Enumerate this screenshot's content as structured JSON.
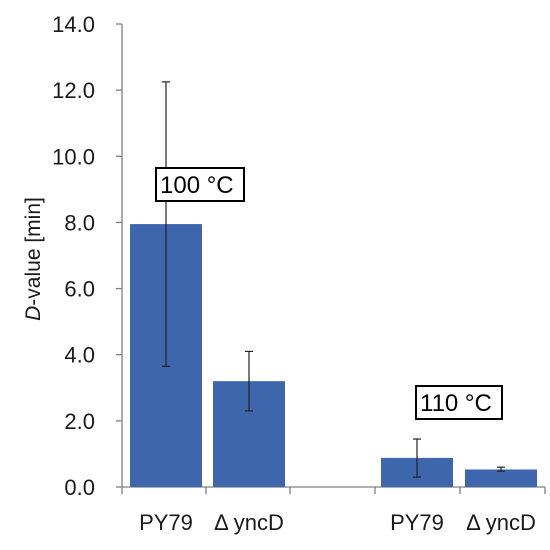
{
  "chart_data": {
    "type": "bar",
    "ylabel_italic": "D",
    "ylabel_rest": "-value [min]",
    "ylim": [
      0,
      14
    ],
    "yticks": [
      "0.0",
      "2.0",
      "4.0",
      "6.0",
      "8.0",
      "10.0",
      "12.0",
      "14.0"
    ],
    "grid": false,
    "bar_color": "#3d66ad",
    "groups": [
      {
        "annotation": "100 °C",
        "bars": [
          {
            "label": "PY79",
            "value": 7.95,
            "err_low": 3.65,
            "err_high": 12.25
          },
          {
            "label": "Δ yncD",
            "value": 3.2,
            "err_low": 2.3,
            "err_high": 4.1
          }
        ]
      },
      {
        "annotation": "110 °C",
        "bars": [
          {
            "label": "PY79",
            "value": 0.88,
            "err_low": 0.3,
            "err_high": 1.45
          },
          {
            "label": "Δ yncD",
            "value": 0.53,
            "err_low": 0.48,
            "err_high": 0.6
          }
        ]
      }
    ]
  }
}
